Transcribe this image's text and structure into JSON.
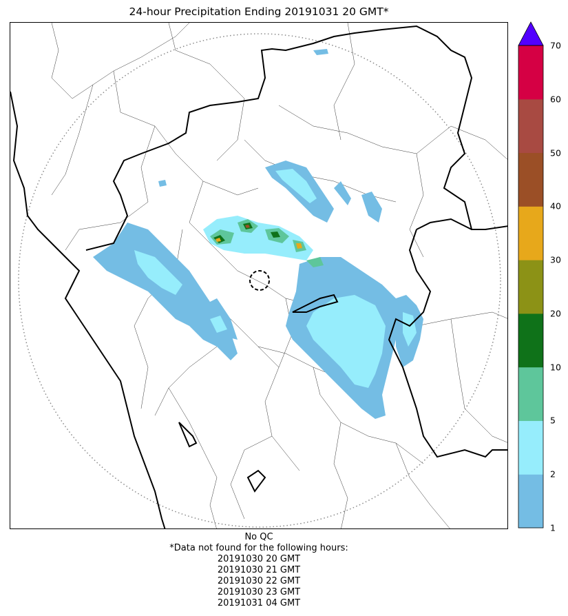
{
  "title": "24-hour Precipitation Ending 20191031 20 GMT*",
  "legend": {
    "ticks": [
      "1",
      "2",
      "5",
      "10",
      "20",
      "30",
      "40",
      "50",
      "60",
      "70"
    ],
    "colors": [
      "#74bde4",
      "#96edfc",
      "#5ec69b",
      "#0f7219",
      "#8c9216",
      "#e7a81b",
      "#9b4f26",
      "#a84a42",
      "#d50044"
    ],
    "over_color": "#5200ff",
    "extend": "max"
  },
  "footer": {
    "qc": "No QC",
    "missing_header": "*Data not found for the following hours:",
    "missing_hours": [
      "20191030 20 GMT",
      "20191030 21 GMT",
      "20191030 22 GMT",
      "20191030 23 GMT",
      "20191031 04 GMT"
    ]
  }
}
